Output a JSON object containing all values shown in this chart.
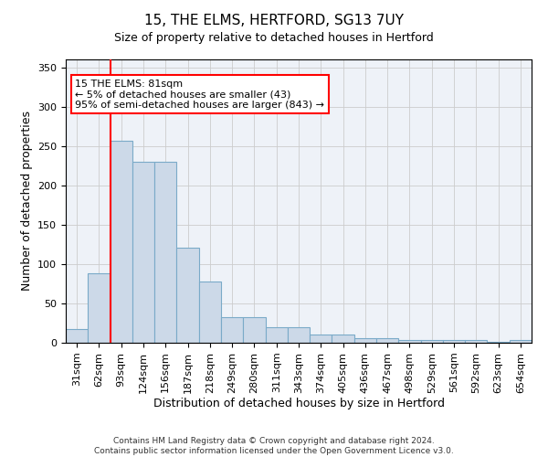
{
  "title": "15, THE ELMS, HERTFORD, SG13 7UY",
  "subtitle": "Size of property relative to detached houses in Hertford",
  "xlabel": "Distribution of detached houses by size in Hertford",
  "ylabel": "Number of detached properties",
  "categories": [
    "31sqm",
    "62sqm",
    "93sqm",
    "124sqm",
    "156sqm",
    "187sqm",
    "218sqm",
    "249sqm",
    "280sqm",
    "311sqm",
    "343sqm",
    "374sqm",
    "405sqm",
    "436sqm",
    "467sqm",
    "498sqm",
    "529sqm",
    "561sqm",
    "592sqm",
    "623sqm",
    "654sqm"
  ],
  "values": [
    18,
    88,
    257,
    230,
    230,
    121,
    78,
    33,
    33,
    20,
    20,
    10,
    10,
    6,
    6,
    4,
    4,
    3,
    3,
    1,
    3
  ],
  "bar_color": "#ccd9e8",
  "bar_edge_color": "#7aaac8",
  "grid_color": "#cccccc",
  "bg_color": "#eef2f8",
  "red_line_x": 1.5,
  "annotation_text": "15 THE ELMS: 81sqm\n← 5% of detached houses are smaller (43)\n95% of semi-detached houses are larger (843) →",
  "ylim": [
    0,
    360
  ],
  "yticks": [
    0,
    50,
    100,
    150,
    200,
    250,
    300,
    350
  ],
  "footer": "Contains HM Land Registry data © Crown copyright and database right 2024.\nContains public sector information licensed under the Open Government Licence v3.0.",
  "title_fontsize": 11,
  "xlabel_fontsize": 9,
  "ylabel_fontsize": 9,
  "tick_fontsize": 8,
  "annot_fontsize": 8
}
